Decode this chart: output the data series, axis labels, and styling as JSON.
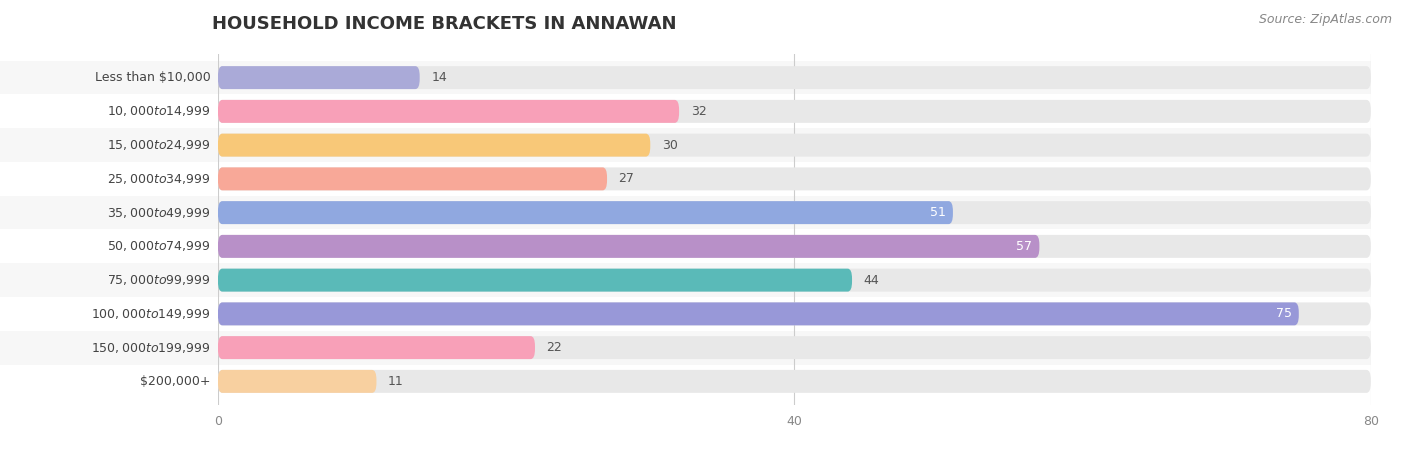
{
  "title": "HOUSEHOLD INCOME BRACKETS IN ANNAWAN",
  "source": "Source: ZipAtlas.com",
  "categories": [
    "Less than $10,000",
    "$10,000 to $14,999",
    "$15,000 to $24,999",
    "$25,000 to $34,999",
    "$35,000 to $49,999",
    "$50,000 to $74,999",
    "$75,000 to $99,999",
    "$100,000 to $149,999",
    "$150,000 to $199,999",
    "$200,000+"
  ],
  "values": [
    14,
    32,
    30,
    27,
    51,
    57,
    44,
    75,
    22,
    11
  ],
  "bar_colors": [
    "#aaaad8",
    "#f8a0b8",
    "#f8c878",
    "#f8a898",
    "#90a8e0",
    "#b890c8",
    "#5abab8",
    "#9898d8",
    "#f8a0b8",
    "#f8d0a0"
  ],
  "label_colors": [
    "#666666",
    "#666666",
    "#666666",
    "#666666",
    "#ffffff",
    "#ffffff",
    "#666666",
    "#ffffff",
    "#666666",
    "#666666"
  ],
  "xlim": [
    0,
    80
  ],
  "xticks": [
    0,
    40,
    80
  ],
  "background_color": "#ffffff",
  "bar_background": "#e8e8e8",
  "row_bg_color": "#f0f0f0",
  "title_fontsize": 13,
  "source_fontsize": 9,
  "label_fontsize": 9,
  "cat_fontsize": 9,
  "tick_fontsize": 9
}
